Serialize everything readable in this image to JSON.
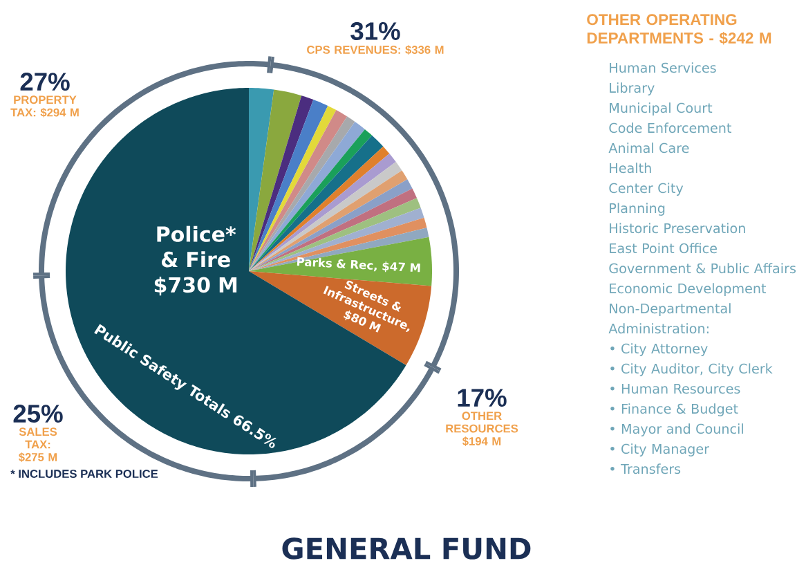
{
  "chart_data": [
    {
      "type": "pie",
      "title": "GENERAL FUND",
      "categories": [
        null,
        null,
        null,
        null,
        null,
        null,
        null,
        null,
        null,
        null,
        null,
        null,
        null,
        null,
        null,
        null,
        null,
        null,
        null,
        null,
        "Parks & Rec, $47 M",
        "Streets & Infrastructure, $80 M",
        "Police* & Fire $730 M"
      ],
      "values": [
        24,
        27,
        12,
        15,
        9,
        12,
        9,
        12,
        9,
        15,
        9,
        10,
        10,
        10,
        10,
        10,
        10,
        10,
        10,
        9,
        47,
        80,
        730
      ],
      "colors": [
        "#3a9ab0",
        "#8aa83e",
        "#4b2d7f",
        "#4a7fc8",
        "#e2d93a",
        "#d08a88",
        "#a7a9ac",
        "#8ea9d6",
        "#1aa05a",
        "#16708a",
        "#e0802c",
        "#a99bd0",
        "#c9c9c9",
        "#e0a070",
        "#8aa0c8",
        "#c07080",
        "#9ec080",
        "#a0b0d0",
        "#e09060",
        "#90a8c0",
        "#79b043",
        "#cc6a2c",
        "#0f4a5a"
      ],
      "annotations": [
        "Public Safety Totals 66.5%",
        "* INCLUDES PARK POLICE",
        "OTHER OPERATING DEPARTMENTS - $242 M",
        "Human Services",
        "Library",
        "Municipal Court",
        "Code Enforcement",
        "Animal Care",
        "Health",
        "Center City",
        "Planning",
        "Historic Preservation",
        "East Point Office",
        "Government & Public Affairs",
        "Economic Development",
        "Non-Departmental Administration:",
        "• City Attorney",
        "• City Auditor, City Clerk",
        "• Human Resources",
        "• Finance & Budget",
        "• Mayor and Council",
        "• City Manager",
        "• Transfers"
      ]
    },
    {
      "type": "donut",
      "categories": [
        "CPS REVENUES: $336 M",
        "OTHER RESOURCES $194 M",
        "SALES TAX: $275 M",
        "PROPERTY TAX: $294 M"
      ],
      "values": [
        31,
        17,
        25,
        27
      ],
      "colors": [
        "#5e7184",
        "#5e7184",
        "#5e7184",
        "#5e7184"
      ],
      "value_labels": [
        "31%",
        "17%",
        "25%",
        "27%"
      ]
    }
  ]
}
